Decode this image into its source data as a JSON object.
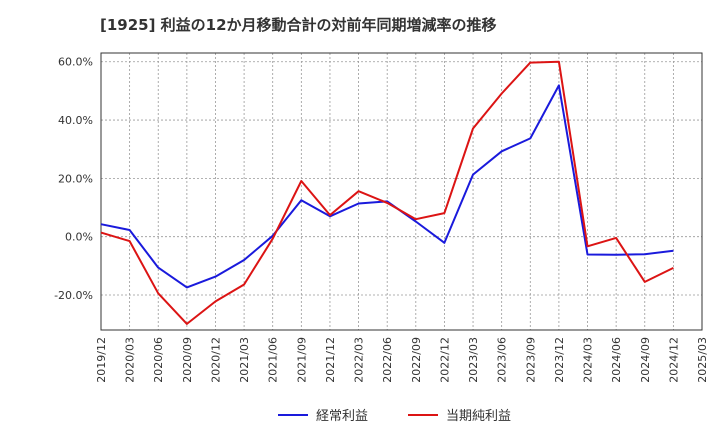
{
  "chart_data": {
    "type": "line",
    "title": "[1925]  利益の12か月移動合計の対前年同期増減率の推移",
    "xlabel": "",
    "ylabel": "",
    "ylim": [
      -32,
      63
    ],
    "yticks": [
      -20,
      0,
      20,
      40,
      60
    ],
    "ytick_labels": [
      "-20.0%",
      "0.0%",
      "20.0%",
      "40.0%",
      "60.0%"
    ],
    "categories": [
      "2019/12",
      "2020/03",
      "2020/06",
      "2020/09",
      "2020/12",
      "2021/03",
      "2021/06",
      "2021/09",
      "2021/12",
      "2022/03",
      "2022/06",
      "2022/09",
      "2022/12",
      "2023/03",
      "2023/06",
      "2023/09",
      "2023/12",
      "2024/03",
      "2024/06",
      "2024/09",
      "2024/12",
      "2025/03"
    ],
    "grid": true,
    "legend_position": "bottom-center",
    "series": [
      {
        "name": "経常利益",
        "color": "#1a1adc",
        "values": [
          4.3,
          2.3,
          -10.6,
          -17.4,
          -13.7,
          -8.0,
          0.3,
          12.5,
          7.0,
          11.4,
          12.1,
          5.2,
          -2.1,
          21.3,
          29.3,
          33.7,
          51.9,
          -6.1,
          -6.2,
          -6.0,
          -4.8,
          null
        ]
      },
      {
        "name": "当期純利益",
        "color": "#dc1414",
        "values": [
          1.4,
          -1.5,
          -19.4,
          -29.9,
          -22.2,
          -16.4,
          -0.7,
          19.1,
          7.4,
          15.6,
          11.6,
          6.0,
          8.1,
          37.1,
          49.1,
          59.7,
          60.0,
          -3.3,
          -0.4,
          -15.5,
          -10.7,
          null
        ]
      }
    ]
  }
}
